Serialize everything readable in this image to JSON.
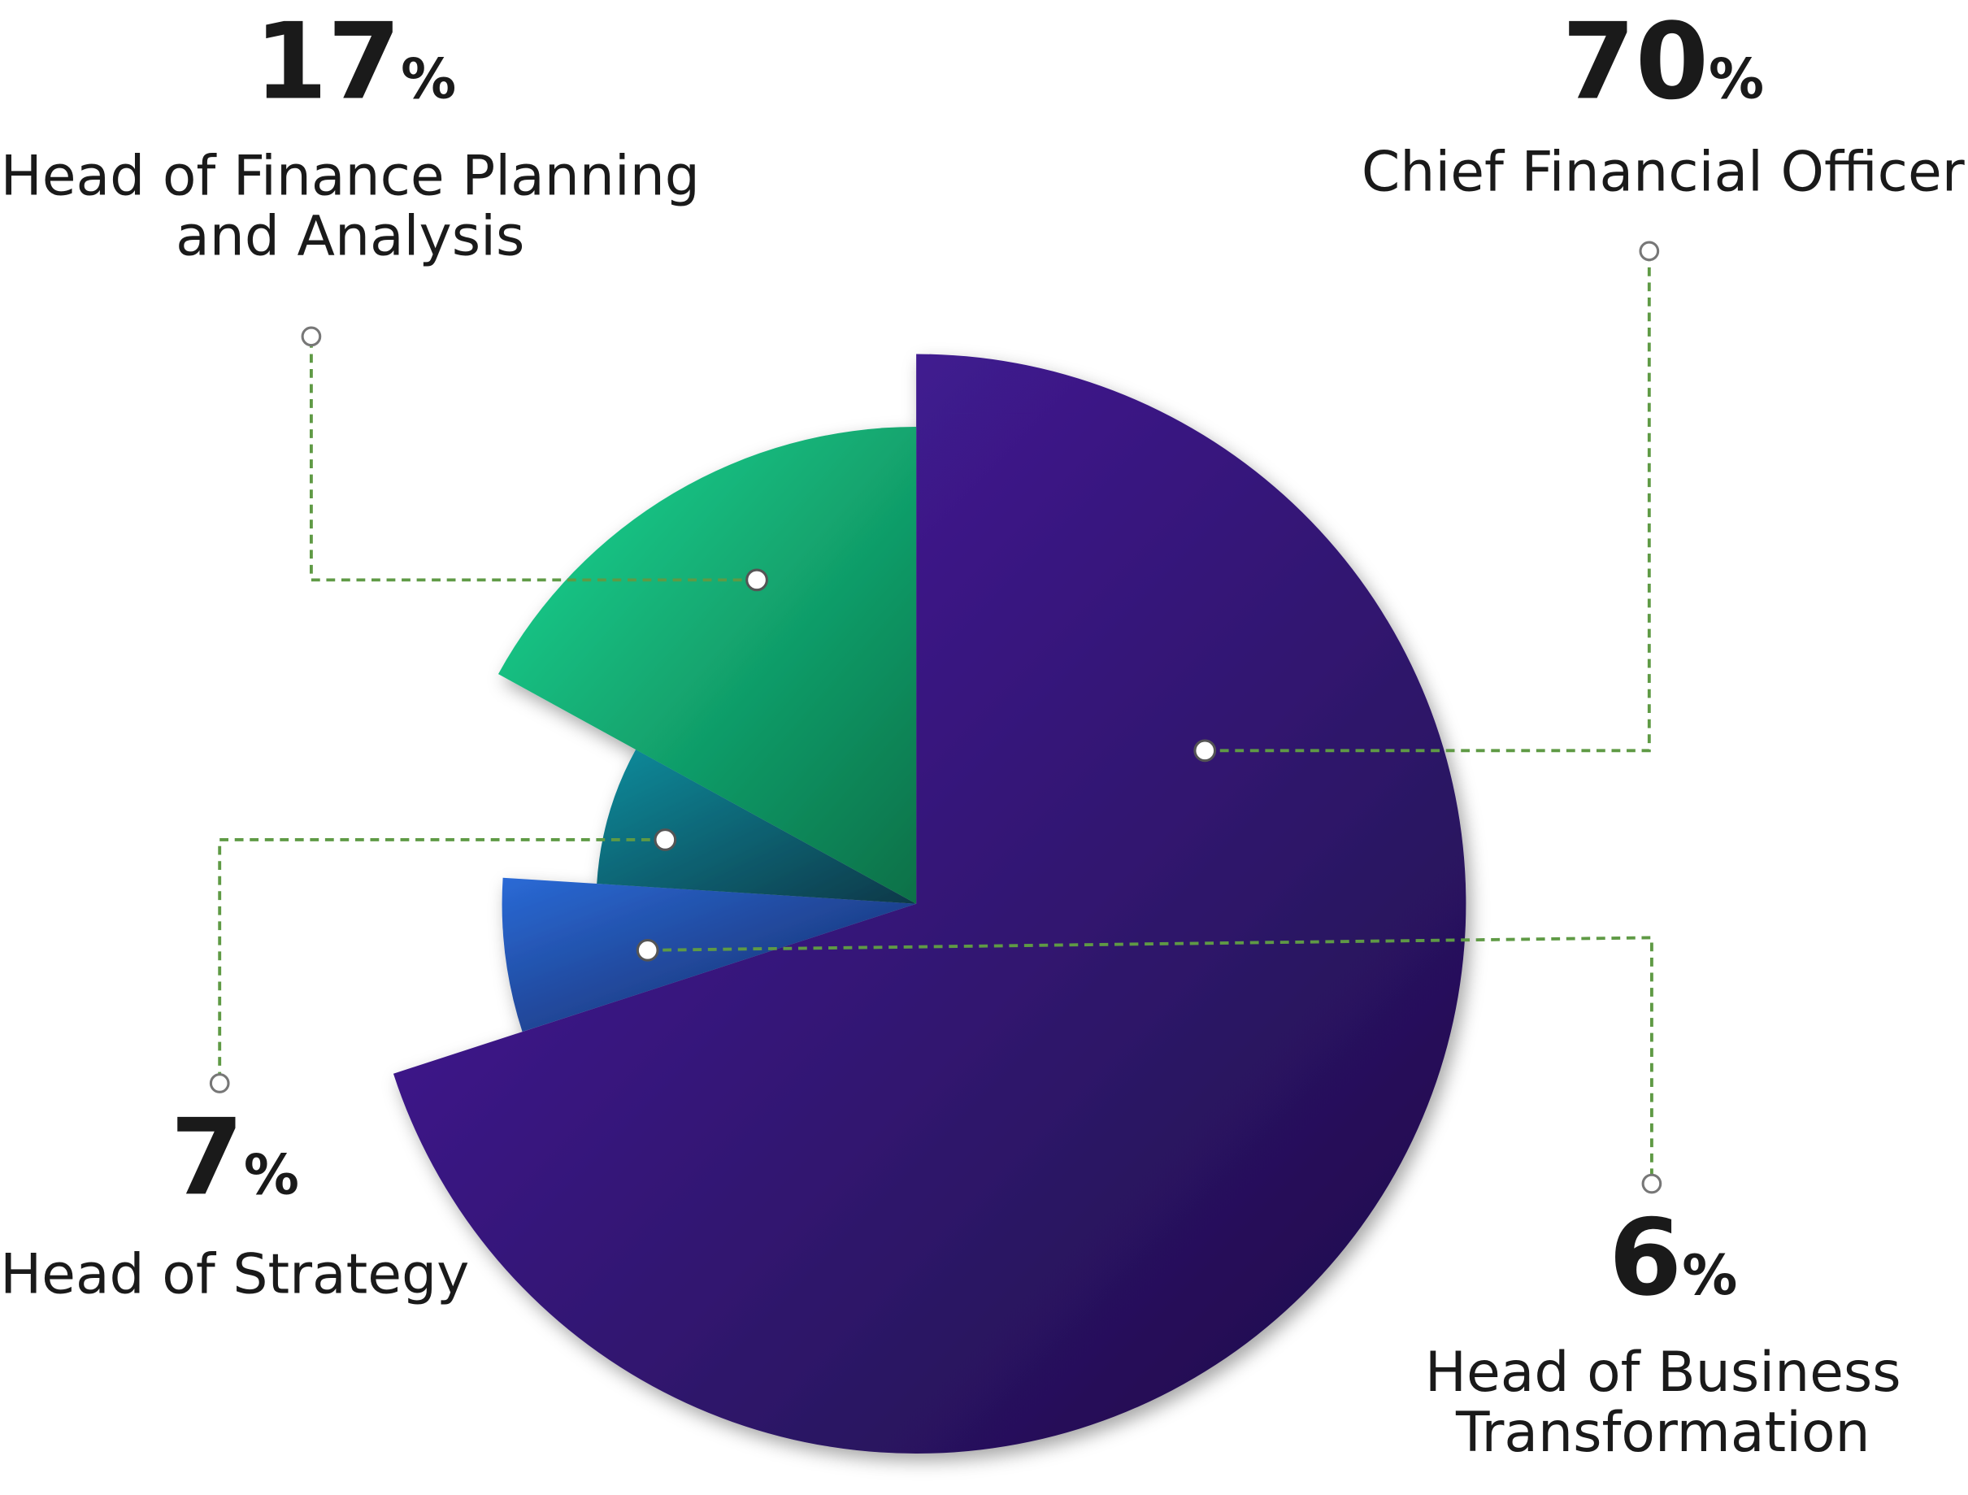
{
  "chart_data": {
    "type": "pie",
    "categories": [
      "Chief Financial Officer",
      "Head of Business Transformation",
      "Head of Strategy",
      "Head of Finance Planning and Analysis"
    ],
    "values": [
      70,
      6,
      7,
      17
    ],
    "value_labels": [
      "70%",
      "6%",
      "7%",
      "17%"
    ],
    "colors": [
      [
        "#4b1fa8",
        "#1d0d45"
      ],
      [
        "#2a6ad6",
        "#16255e"
      ],
      [
        "#0a8c9c",
        "#083848"
      ],
      [
        "#19da95",
        "#0b7048"
      ]
    ]
  }
}
